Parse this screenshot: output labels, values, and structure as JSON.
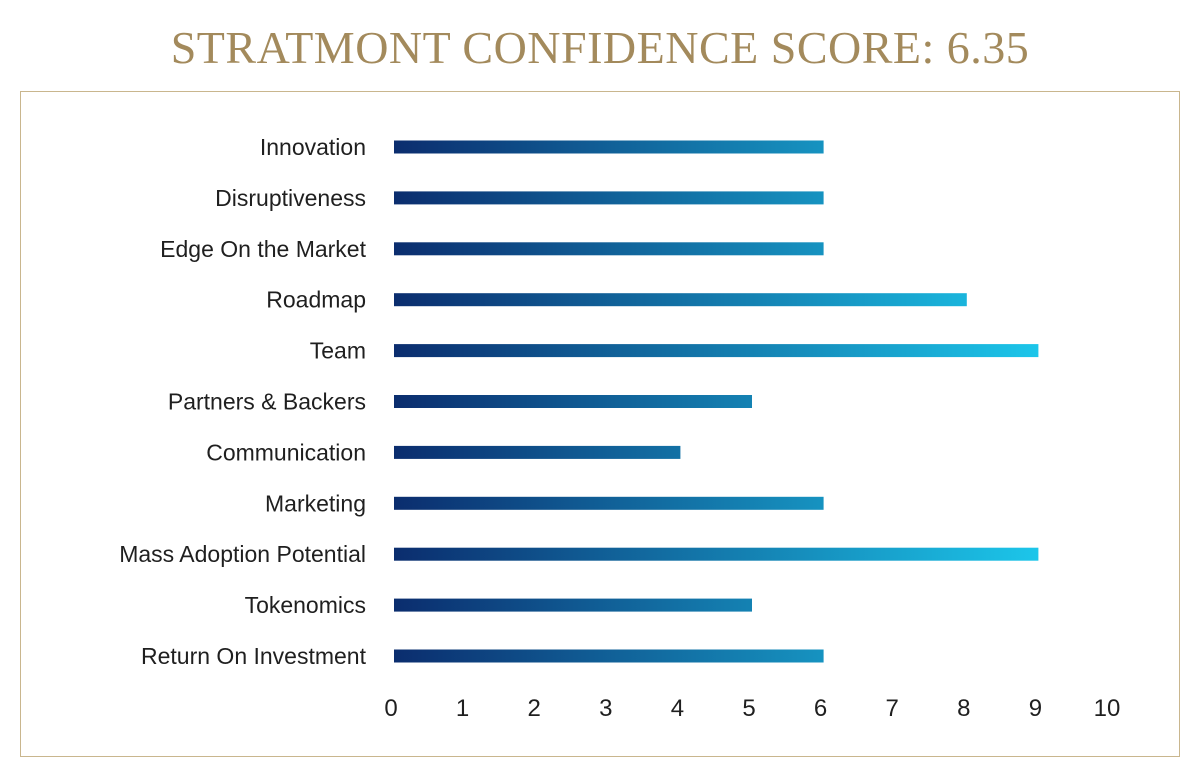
{
  "header": {
    "title": "STRATMONT CONFIDENCE SCORE: 6.35"
  },
  "colors": {
    "title": "#a38a5c",
    "frame": "#c9b68e",
    "bar_start": "#0b2d6e",
    "bar_end": "#1cc6ea"
  },
  "chart_data": {
    "type": "bar",
    "orientation": "horizontal",
    "categories": [
      "Innovation",
      "Disruptiveness",
      "Edge On the Market",
      "Roadmap",
      "Team",
      "Partners & Backers",
      "Communication",
      "Marketing",
      "Mass Adoption Potential",
      "Tokenomics",
      "Return On Investment"
    ],
    "values": [
      6,
      6,
      6,
      8,
      9,
      5,
      4,
      6,
      9,
      5,
      6
    ],
    "xlim": [
      0,
      10
    ],
    "xticks": [
      0,
      1,
      2,
      3,
      4,
      5,
      6,
      7,
      8,
      9,
      10
    ],
    "grid": false,
    "legend": "none"
  }
}
